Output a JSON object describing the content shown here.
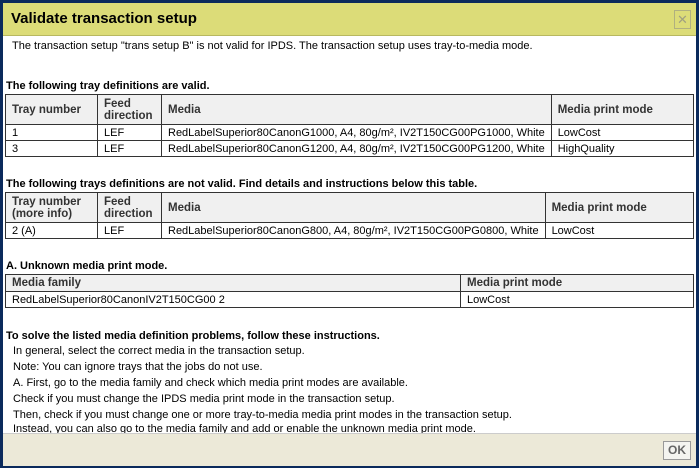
{
  "dialog": {
    "title": "Validate transaction setup",
    "close_icon": "close-icon",
    "ok_label": "OK"
  },
  "intro": "The transaction setup \"trans setup B\" is not valid for IPDS. The transaction setup uses tray-to-media mode.",
  "valid": {
    "heading": "The following tray definitions are valid.",
    "headers": [
      "Tray number",
      "Feed direction",
      "Media",
      "Media print mode"
    ],
    "rows": [
      [
        "1",
        "LEF",
        "RedLabelSuperior80CanonG1000, A4, 80g/m², IV2T150CG00PG1000, White",
        "LowCost"
      ],
      [
        "3",
        "LEF",
        "RedLabelSuperior80CanonG1200, A4, 80g/m², IV2T150CG00PG1200, White",
        "HighQuality"
      ]
    ]
  },
  "invalid": {
    "heading": "The following trays definitions are not valid. Find details and instructions below this table.",
    "headers": [
      "Tray number (more info)",
      "Feed direction",
      "Media",
      "Media print mode"
    ],
    "rows": [
      [
        "2 (A)",
        "LEF",
        "RedLabelSuperior80CanonG800, A4, 80g/m², IV2T150CG00PG0800, White",
        "LowCost"
      ]
    ]
  },
  "unknown": {
    "heading": "A. Unknown media print mode.",
    "headers": [
      "Media family",
      "Media print mode"
    ],
    "rows": [
      [
        "RedLabelSuperior80CanonIV2T150CG00 2",
        "LowCost"
      ]
    ]
  },
  "instructions": {
    "heading": "To solve the listed media definition problems, follow these instructions.",
    "lines": [
      "In general, select the correct media in the transaction setup.",
      "Note: You can ignore trays that the jobs do not use.",
      "A. First, go to the media family and check which media print modes are available.",
      "Check if you must change the IPDS media print mode in the transaction setup.",
      "Then, check if you must change one or more tray-to-media media print modes in the transaction setup.",
      "Instead, you can also go to the media family and add or enable the unknown media print mode."
    ]
  }
}
